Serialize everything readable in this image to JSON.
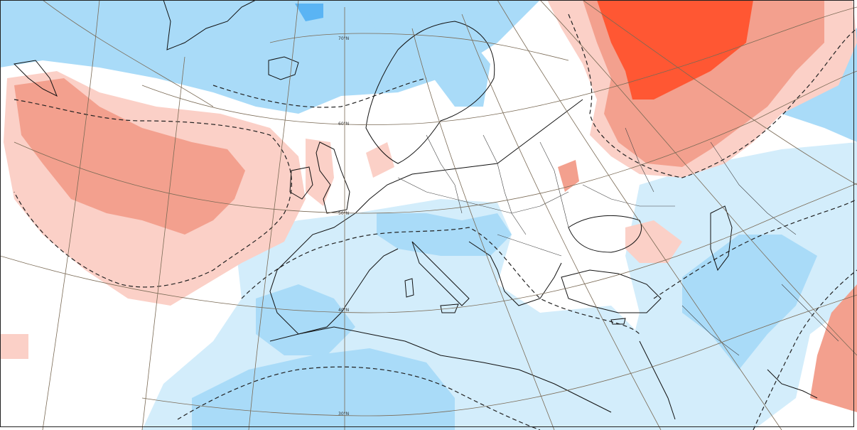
{
  "map": {
    "latitude_labels": [
      {
        "id": "lat-70",
        "text": "70°N"
      },
      {
        "id": "lat-60",
        "text": "60°N"
      },
      {
        "id": "lat-50",
        "text": "50°N"
      },
      {
        "id": "lat-40",
        "text": "40°N"
      },
      {
        "id": "lat-30",
        "text": "30°N"
      }
    ]
  },
  "colors": {
    "cold_strong": "#5ab4f4",
    "cold_medium": "#a9dbf8",
    "cold_light": "#d3edfb",
    "warm_light": "#fbd0c7",
    "warm_medium": "#f3a08e",
    "warm_strong": "#ff5733",
    "coastline": "#111111",
    "graticule": "#7a6a55",
    "background": "#ffffff"
  }
}
